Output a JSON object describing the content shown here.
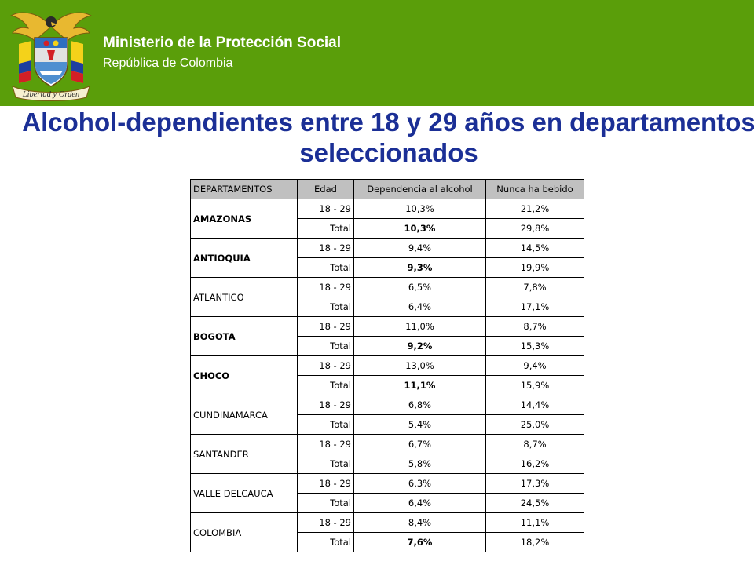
{
  "header": {
    "ministry": "Ministerio de la Protección Social",
    "republic": "República de Colombia",
    "logo_motto": "Libertad y Orden"
  },
  "title": "Alcohol-dependientes entre 18 y 29 años en departamentos seleccionados",
  "table": {
    "columns": [
      "DEPARTAMENTOS",
      "Edad",
      "Dependencia al alcohol",
      "Nunca ha bebido"
    ],
    "groups": [
      {
        "department": "AMAZONAS",
        "bold": true,
        "rows": [
          {
            "edad": "18 - 29",
            "dependencia": "10,3%",
            "nunca": "21,2%",
            "dep_bold": false
          },
          {
            "edad": "Total",
            "dependencia": "10,3%",
            "nunca": "29,8%",
            "dep_bold": true
          }
        ]
      },
      {
        "department": "ANTIOQUIA",
        "bold": true,
        "rows": [
          {
            "edad": "18 - 29",
            "dependencia": "9,4%",
            "nunca": "14,5%",
            "dep_bold": false
          },
          {
            "edad": "Total",
            "dependencia": "9,3%",
            "nunca": "19,9%",
            "dep_bold": true
          }
        ]
      },
      {
        "department": "ATLANTICO",
        "bold": false,
        "rows": [
          {
            "edad": "18 - 29",
            "dependencia": "6,5%",
            "nunca": "7,8%",
            "dep_bold": false
          },
          {
            "edad": "Total",
            "dependencia": "6,4%",
            "nunca": "17,1%",
            "dep_bold": false
          }
        ]
      },
      {
        "department": "BOGOTA",
        "bold": true,
        "rows": [
          {
            "edad": "18 - 29",
            "dependencia": "11,0%",
            "nunca": "8,7%",
            "dep_bold": false
          },
          {
            "edad": "Total",
            "dependencia": "9,2%",
            "nunca": "15,3%",
            "dep_bold": true
          }
        ]
      },
      {
        "department": "CHOCO",
        "bold": true,
        "rows": [
          {
            "edad": "18 - 29",
            "dependencia": "13,0%",
            "nunca": "9,4%",
            "dep_bold": false
          },
          {
            "edad": "Total",
            "dependencia": "11,1%",
            "nunca": "15,9%",
            "dep_bold": true
          }
        ]
      },
      {
        "department": "CUNDINAMARCA",
        "bold": false,
        "rows": [
          {
            "edad": "18 - 29",
            "dependencia": "6,8%",
            "nunca": "14,4%",
            "dep_bold": false
          },
          {
            "edad": "Total",
            "dependencia": "5,4%",
            "nunca": "25,0%",
            "dep_bold": false
          }
        ]
      },
      {
        "department": "SANTANDER",
        "bold": false,
        "rows": [
          {
            "edad": "18 - 29",
            "dependencia": "6,7%",
            "nunca": "8,7%",
            "dep_bold": false
          },
          {
            "edad": "Total",
            "dependencia": "5,8%",
            "nunca": "16,2%",
            "dep_bold": false
          }
        ]
      },
      {
        "department": "VALLE DELCAUCA",
        "bold": false,
        "rows": [
          {
            "edad": "18 - 29",
            "dependencia": "6,3%",
            "nunca": "17,3%",
            "dep_bold": false
          },
          {
            "edad": "Total",
            "dependencia": "6,4%",
            "nunca": "24,5%",
            "dep_bold": false
          }
        ]
      },
      {
        "department": "COLOMBIA",
        "bold": false,
        "rows": [
          {
            "edad": "18 - 29",
            "dependencia": "8,4%",
            "nunca": "11,1%",
            "dep_bold": false
          },
          {
            "edad": "Total",
            "dependencia": "7,6%",
            "nunca": "18,2%",
            "dep_bold": true
          }
        ]
      }
    ]
  },
  "colors": {
    "header_bg": "#5a9e0a",
    "title": "#1b2f96",
    "table_header_bg": "#c0c0c0"
  }
}
